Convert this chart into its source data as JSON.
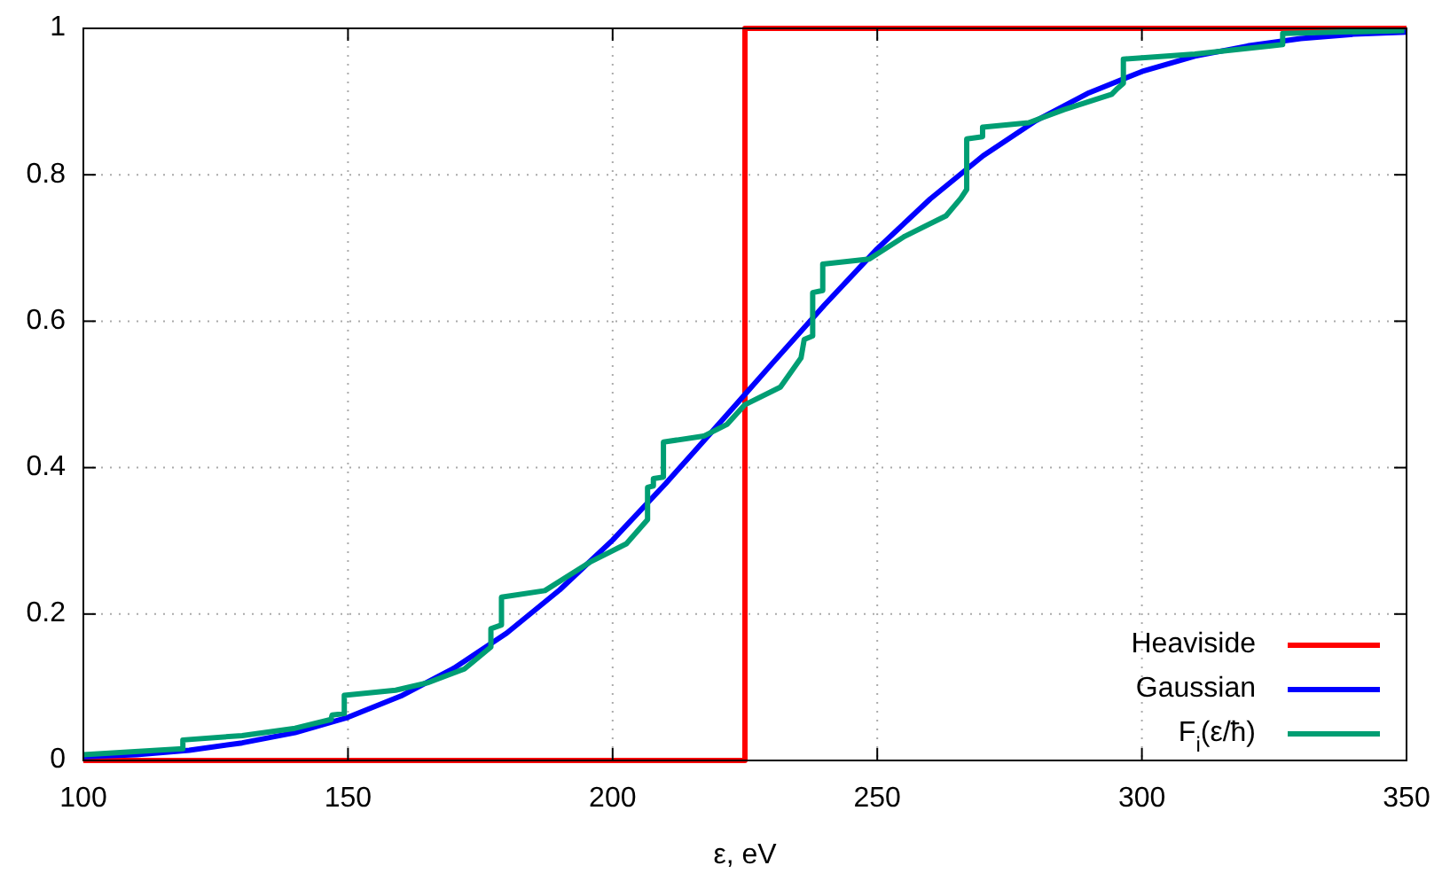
{
  "chart_data": {
    "type": "line",
    "xlabel": "ε, eV",
    "xlim": [
      100,
      350
    ],
    "ylim": [
      0,
      1
    ],
    "xticks": [
      100,
      150,
      200,
      250,
      300,
      350
    ],
    "yticks": [
      0,
      0.2,
      0.4,
      0.6,
      0.8,
      1
    ],
    "grid": true,
    "legend": "bottom right",
    "line_style": "solid",
    "series": [
      {
        "name": "Heaviside",
        "color": "#ff0000",
        "x": [
          100,
          225,
          225,
          350
        ],
        "values": [
          0,
          0,
          1,
          1
        ]
      },
      {
        "name": "Gaussian",
        "color": "#0000ff",
        "x": [
          100,
          110,
          120,
          130,
          140,
          150,
          160,
          170,
          180,
          190,
          200,
          210,
          220,
          225,
          230,
          240,
          250,
          260,
          270,
          280,
          290,
          300,
          310,
          320,
          330,
          340,
          350
        ],
        "values": [
          0.005,
          0.008,
          0.014,
          0.024,
          0.038,
          0.059,
          0.088,
          0.126,
          0.174,
          0.233,
          0.301,
          0.378,
          0.459,
          0.5,
          0.541,
          0.622,
          0.699,
          0.767,
          0.826,
          0.874,
          0.912,
          0.941,
          0.962,
          0.976,
          0.986,
          0.992,
          0.995
        ]
      },
      {
        "name": "F$_{i}$(ε/ħ)",
        "color": "#009e73",
        "x": [
          100,
          118.8,
          118.8,
          130,
          140,
          146.8,
          147,
          149.3,
          149.3,
          159,
          165,
          172,
          177,
          177,
          179,
          179,
          187.2,
          196,
          202.6,
          206.6,
          206.6,
          207.7,
          207.7,
          209.6,
          209.6,
          217.2,
          221.6,
          225,
          231.7,
          235.6,
          236.2,
          237.8,
          237.8,
          239.7,
          239.7,
          248.5,
          255.2,
          263,
          265.8,
          266.9,
          266.9,
          269.9,
          269.9,
          278.6,
          285.3,
          294.3,
          295.4,
          296.5,
          296.5,
          310,
          324.4,
          326.6,
          326.6,
          349.6
        ],
        "values": [
          0.008,
          0.016,
          0.028,
          0.034,
          0.044,
          0.056,
          0.062,
          0.064,
          0.089,
          0.096,
          0.106,
          0.125,
          0.155,
          0.18,
          0.185,
          0.223,
          0.232,
          0.272,
          0.296,
          0.329,
          0.373,
          0.375,
          0.385,
          0.387,
          0.435,
          0.443,
          0.459,
          0.486,
          0.51,
          0.55,
          0.575,
          0.58,
          0.639,
          0.642,
          0.678,
          0.685,
          0.716,
          0.744,
          0.768,
          0.78,
          0.849,
          0.852,
          0.865,
          0.871,
          0.889,
          0.91,
          0.918,
          0.925,
          0.958,
          0.965,
          0.976,
          0.978,
          0.993,
          0.997
        ]
      }
    ]
  }
}
